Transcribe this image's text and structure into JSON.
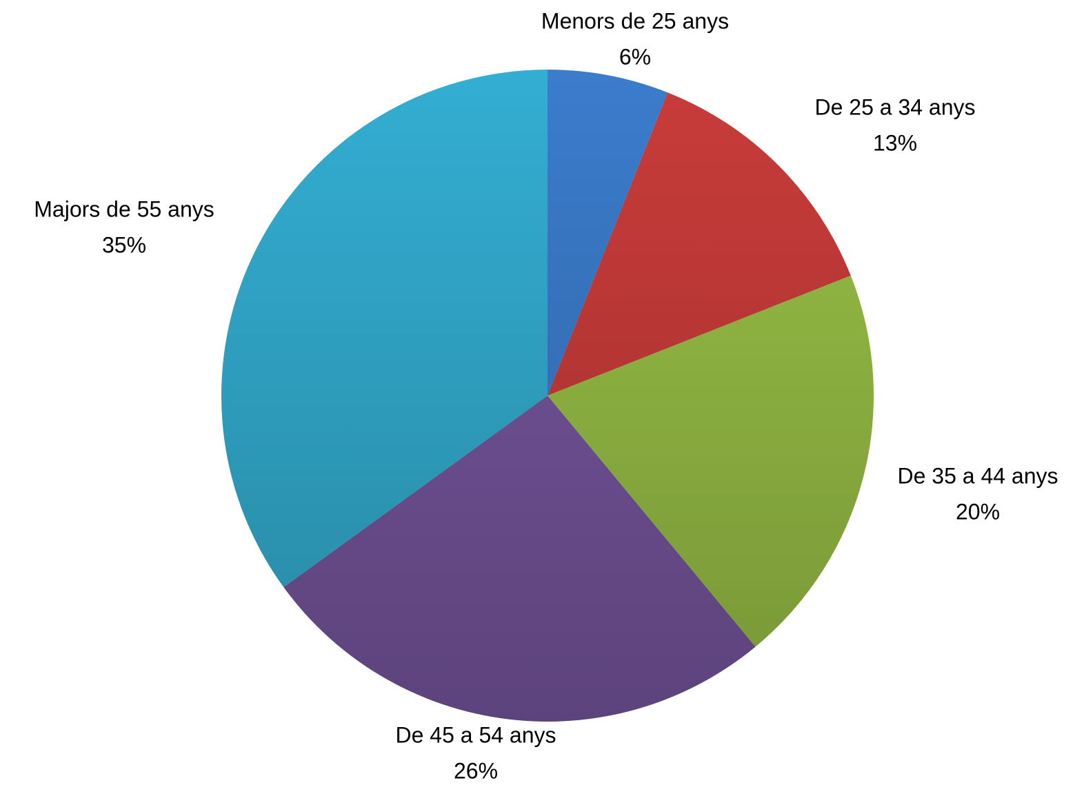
{
  "chart_data": {
    "type": "pie",
    "categories": [
      "Menors de 25 anys",
      "De 25 a 34 anys",
      "De 35 a 44 anys",
      "De 45 a 54 anys",
      "Majors de 55 anys"
    ],
    "values": [
      6,
      13,
      20,
      26,
      35
    ],
    "value_labels": [
      "6%",
      "13%",
      "20%",
      "26%",
      "35%"
    ],
    "colors": [
      "#3b7ccc",
      "#c93c3a",
      "#99c046",
      "#77569f",
      "#33aed2"
    ]
  }
}
